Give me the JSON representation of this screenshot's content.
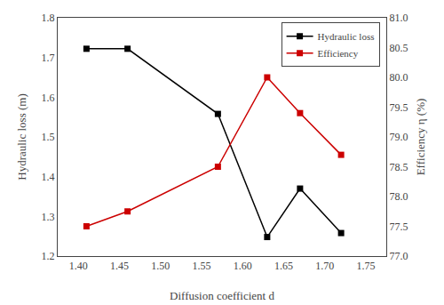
{
  "chart_data": {
    "type": "line",
    "xlabel": "Diffusion coefficient d",
    "ylabel": "Hydraulic loss (m)",
    "y2label": "Efficiency η (%)",
    "x": [
      1.41,
      1.46,
      1.57,
      1.63,
      1.67,
      1.72
    ],
    "series": [
      {
        "name": "Hydraulic loss",
        "color": "#000000",
        "marker": "square",
        "line_style": "solid",
        "values": [
          1.722,
          1.722,
          1.558,
          1.248,
          1.37,
          1.258
        ]
      },
      {
        "name": "Efficiency",
        "color": "#cc0000",
        "marker": "square",
        "line_style": "solid",
        "axis": "y2",
        "values": [
          77.5,
          77.75,
          78.5,
          80.0,
          79.4,
          78.7
        ]
      }
    ],
    "xlim": [
      1.375,
      1.775
    ],
    "xticks": [
      {
        "value": 1.4,
        "label": "1.40"
      },
      1.45,
      {
        "value": 1.5,
        "label": "1.50"
      },
      1.55,
      {
        "value": 1.6,
        "label": "1.60"
      },
      1.65,
      {
        "value": 1.7,
        "label": "1.70"
      },
      1.75
    ],
    "ylim": [
      1.2,
      1.8
    ],
    "yticks": [
      1.2,
      1.3,
      1.4,
      1.5,
      1.6,
      1.7,
      1.8
    ],
    "y2lim": [
      77.0,
      81.0
    ],
    "y2ticks": [
      {
        "value": 77,
        "label": "77.0"
      },
      77.5,
      {
        "value": 78,
        "label": "78.0"
      },
      78.5,
      {
        "value": 79,
        "label": "79.0"
      },
      79.5,
      {
        "value": 80,
        "label": "80.0"
      },
      80.5,
      {
        "value": 81,
        "label": "81.0"
      }
    ],
    "grid": false,
    "legend": "upper right"
  }
}
